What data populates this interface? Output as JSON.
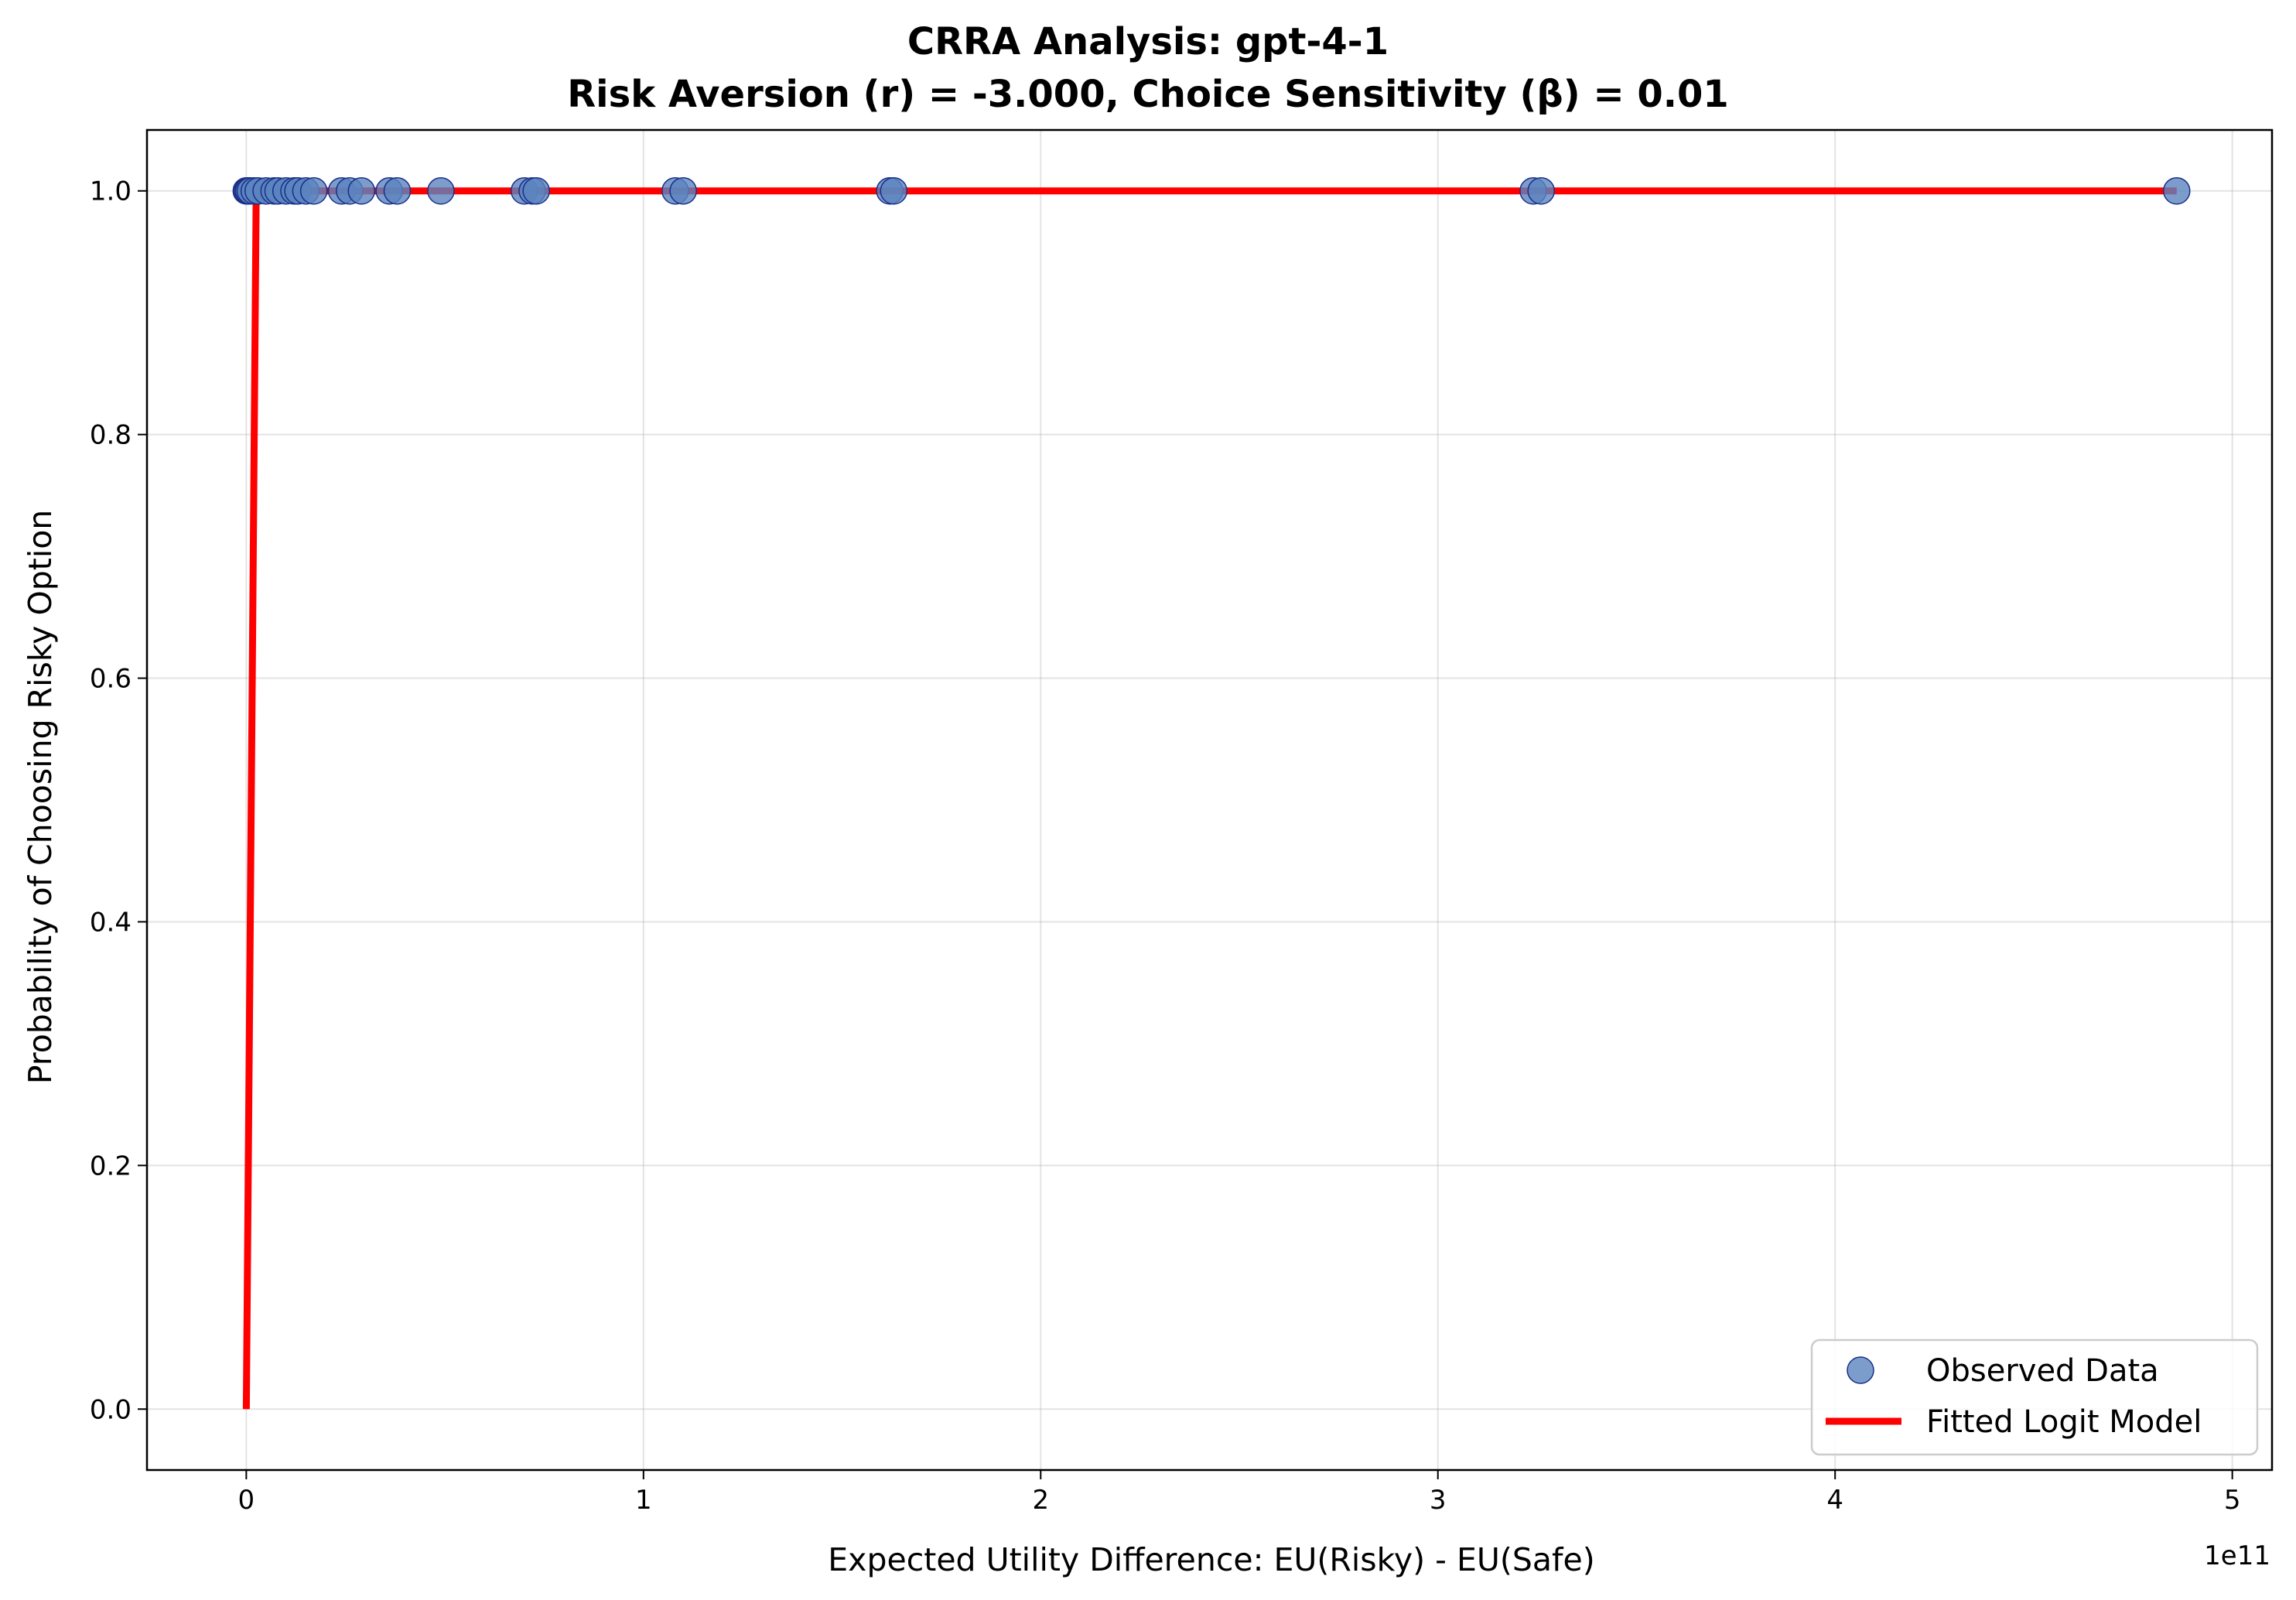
{
  "chart_data": {
    "type": "scatter",
    "title": "CRRA Analysis: gpt-4-1",
    "subtitle": "Risk Aversion (r) = -3.000, Choice Sensitivity (β) = 0.01",
    "xlabel": "Expected Utility Difference: EU(Risky) - EU(Safe)",
    "ylabel": "Probability of Choosing Risky Option",
    "x_offset_label": "1e11",
    "xlim": [
      -0.25,
      5.1
    ],
    "ylim": [
      -0.05,
      1.05
    ],
    "x_ticks": [
      0,
      1,
      2,
      3,
      4,
      5
    ],
    "x_tick_labels": [
      "0",
      "1",
      "2",
      "3",
      "4",
      "5"
    ],
    "y_ticks": [
      0.0,
      0.2,
      0.4,
      0.6,
      0.8,
      1.0
    ],
    "y_tick_labels": [
      "0.0",
      "0.2",
      "0.4",
      "0.6",
      "0.8",
      "1.0"
    ],
    "grid": true,
    "legend_position": "bottom-right",
    "series": [
      {
        "name": "Observed Data",
        "kind": "scatter",
        "color": "#5b84bf",
        "edge_color": "#1a2f8a",
        "x": [
          0.0,
          0.003,
          0.006,
          0.01,
          0.02,
          0.03,
          0.05,
          0.07,
          0.08,
          0.1,
          0.12,
          0.13,
          0.15,
          0.17,
          0.24,
          0.26,
          0.29,
          0.36,
          0.38,
          0.49,
          0.7,
          0.72,
          0.73,
          1.08,
          1.1,
          1.62,
          1.63,
          3.24,
          3.26,
          4.86
        ],
        "y": [
          1,
          1,
          1,
          1,
          1,
          1,
          1,
          1,
          1,
          1,
          1,
          1,
          1,
          1,
          1,
          1,
          1,
          1,
          1,
          1,
          1,
          1,
          1,
          1,
          1,
          1,
          1,
          1,
          1,
          1
        ]
      },
      {
        "name": "Fitted Logit Model",
        "kind": "line",
        "color": "#ff0000",
        "x": [
          0.0,
          0.025,
          4.86
        ],
        "y": [
          0.0,
          1.0,
          1.0
        ]
      }
    ]
  }
}
